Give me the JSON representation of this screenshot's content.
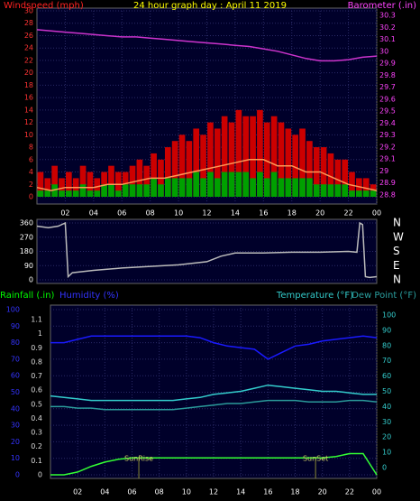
{
  "chart_data": [
    {
      "type": "bar",
      "title": "24 hour graph day : April 11 2019",
      "ylabel": "Windspeed (mph)",
      "y2label": "Barometer (.in)",
      "xlim": [
        0,
        24
      ],
      "xticks": [
        {
          "value": 2,
          "label": "02"
        },
        {
          "value": 4,
          "label": "04"
        },
        {
          "value": 6,
          "label": "06"
        },
        {
          "value": 8,
          "label": "08"
        },
        10,
        12,
        14,
        16,
        18,
        20,
        22,
        {
          "value": 24,
          "label": "00"
        }
      ],
      "ylim": [
        0,
        30
      ],
      "yticks": [
        0,
        2,
        4,
        6,
        8,
        10,
        12,
        14,
        16,
        18,
        20,
        22,
        24,
        26,
        28,
        30
      ],
      "y2lim": [
        28.8,
        30.3
      ],
      "y2ticks": [
        28.8,
        28.9,
        29,
        29.1,
        29.2,
        29.3,
        29.4,
        29.5,
        29.6,
        29.7,
        29.8,
        29.9,
        30,
        30.1,
        30.2,
        30.3
      ],
      "tick_colors": {
        "y": "#ff3333",
        "y2": "#ff44ff"
      },
      "grid": true,
      "series": [
        {
          "type": "bar",
          "color": "#cc0000",
          "x": [
            0.25,
            0.75,
            1.25,
            1.75,
            2.25,
            2.75,
            3.25,
            3.75,
            4.25,
            4.75,
            5.25,
            5.75,
            6.25,
            6.75,
            7.25,
            7.75,
            8.25,
            8.75,
            9.25,
            9.75,
            10.25,
            10.75,
            11.25,
            11.75,
            12.25,
            12.75,
            13.25,
            13.75,
            14.25,
            14.75,
            15.25,
            15.75,
            16.25,
            16.75,
            17.25,
            17.75,
            18.25,
            18.75,
            19.25,
            19.75,
            20.25,
            20.75,
            21.25,
            21.75,
            22.25,
            22.75,
            23.25,
            23.75
          ],
          "values": [
            4,
            3,
            5,
            3,
            4,
            3,
            5,
            4,
            3,
            4,
            5,
            4,
            4,
            5,
            6,
            5,
            7,
            6,
            8,
            9,
            10,
            9,
            11,
            10,
            12,
            11,
            13,
            12,
            14,
            13,
            13,
            14,
            12,
            13,
            12,
            11,
            10,
            11,
            9,
            8,
            8,
            7,
            6,
            6,
            4,
            3,
            3,
            2
          ]
        },
        {
          "type": "bar",
          "color": "#00a000",
          "x": [
            0.25,
            0.75,
            1.25,
            1.75,
            2.25,
            2.75,
            3.25,
            3.75,
            4.25,
            4.75,
            5.25,
            5.75,
            6.25,
            6.75,
            7.25,
            7.75,
            8.25,
            8.75,
            9.25,
            9.75,
            10.25,
            10.75,
            11.25,
            11.75,
            12.25,
            12.75,
            13.25,
            13.75,
            14.25,
            14.75,
            15.25,
            15.75,
            16.25,
            16.75,
            17.25,
            17.75,
            18.25,
            18.75,
            19.25,
            19.75,
            20.25,
            20.75,
            21.25,
            21.75,
            22.25,
            22.75,
            23.25,
            23.75
          ],
          "values": [
            1,
            1,
            2,
            1,
            1,
            1,
            2,
            1,
            1,
            2,
            2,
            1,
            2,
            2,
            2,
            2,
            3,
            2,
            3,
            3,
            3,
            3,
            4,
            3,
            4,
            3,
            4,
            4,
            4,
            4,
            3,
            4,
            3,
            4,
            3,
            3,
            3,
            3,
            3,
            2,
            2,
            2,
            2,
            2,
            1,
            1,
            1,
            1
          ]
        },
        {
          "type": "line",
          "color": "#ff9955",
          "x": [
            0,
            1,
            2,
            3,
            4,
            5,
            6,
            7,
            8,
            9,
            10,
            11,
            12,
            13,
            14,
            15,
            16,
            17,
            18,
            19,
            20,
            21,
            22,
            23,
            24
          ],
          "values": [
            1.5,
            1,
            1.5,
            1.5,
            1.5,
            2,
            2,
            2.5,
            3,
            3,
            3.5,
            4,
            4.5,
            5,
            5.5,
            6,
            6,
            5,
            5,
            4,
            4,
            3,
            2,
            1.5,
            1
          ]
        },
        {
          "type": "line",
          "color": "#cc33cc",
          "axis": "y2",
          "x": [
            0,
            1,
            2,
            3,
            4,
            5,
            6,
            7,
            8,
            9,
            10,
            11,
            12,
            13,
            14,
            15,
            16,
            17,
            18,
            19,
            20,
            21,
            22,
            23,
            24
          ],
          "values": [
            30.18,
            30.17,
            30.16,
            30.15,
            30.14,
            30.13,
            30.12,
            30.12,
            30.11,
            30.1,
            30.09,
            30.08,
            30.07,
            30.06,
            30.05,
            30.04,
            30.02,
            30,
            29.97,
            29.94,
            29.92,
            29.92,
            29.93,
            29.95,
            29.96
          ]
        }
      ]
    },
    {
      "type": "line",
      "xlim": [
        0,
        24
      ],
      "ylim": [
        0,
        360
      ],
      "yticks": [
        0,
        90,
        180,
        270,
        360
      ],
      "y2lim": [
        0,
        360
      ],
      "y2ticks": [
        {
          "value": 0,
          "label": "N"
        },
        {
          "value": 90,
          "label": "E"
        },
        {
          "value": 180,
          "label": "S"
        },
        {
          "value": 270,
          "label": "W"
        },
        {
          "value": 360,
          "label": "N"
        }
      ],
      "tick_colors": {
        "y": "#ffffff",
        "y2": "#ffffff"
      },
      "grid": true,
      "series": [
        {
          "type": "line",
          "color": "#bbbbbb",
          "x": [
            0,
            0.8,
            1.5,
            2,
            2.2,
            2.5,
            4,
            6,
            8,
            10,
            12,
            13,
            14,
            16,
            18,
            20,
            22,
            22.6,
            22.8,
            23,
            23.2,
            23.5,
            24
          ],
          "values": [
            340,
            330,
            340,
            360,
            20,
            45,
            60,
            75,
            85,
            95,
            115,
            150,
            170,
            170,
            175,
            175,
            180,
            175,
            360,
            350,
            20,
            15,
            20
          ]
        }
      ]
    },
    {
      "type": "line",
      "xlim": [
        0,
        24
      ],
      "xticks": [
        {
          "value": 2,
          "label": "02"
        },
        {
          "value": 4,
          "label": "04"
        },
        {
          "value": 6,
          "label": "06"
        },
        {
          "value": 8,
          "label": "08"
        },
        10,
        12,
        14,
        16,
        18,
        20,
        22,
        {
          "value": 24,
          "label": "00"
        }
      ],
      "ylim": [
        0,
        100
      ],
      "yticks": [
        0,
        10,
        20,
        30,
        40,
        50,
        60,
        70,
        80,
        90,
        100
      ],
      "y2lim": [
        0,
        100
      ],
      "y2ticks": [
        0,
        10,
        20,
        30,
        40,
        50,
        60,
        70,
        80,
        90,
        100
      ],
      "y3lim": [
        0,
        1.1
      ],
      "y3ticks": [
        0,
        0.1,
        0.2,
        0.3,
        0.4,
        0.5,
        0.6,
        0.7,
        0.8,
        0.9,
        1,
        1.1
      ],
      "tick_colors": {
        "y": "#3333ff",
        "y2": "#33cccc",
        "y3": "#dddddd"
      },
      "grid": true,
      "annotations": [
        {
          "text": "SunRise",
          "x": 6.5
        },
        {
          "text": "SunSet",
          "x": 19.5
        }
      ],
      "series": [
        {
          "name": "Humidity (%)",
          "type": "line",
          "color": "#1a1aff",
          "x": [
            0,
            1,
            2,
            3,
            4,
            5,
            6,
            7,
            8,
            9,
            10,
            11,
            12,
            13,
            14,
            15,
            16,
            17,
            18,
            19,
            20,
            21,
            22,
            23,
            24
          ],
          "values": [
            80,
            80,
            82,
            84,
            84,
            84,
            84,
            84,
            84,
            84,
            84,
            83,
            80,
            78,
            77,
            76,
            70,
            74,
            78,
            79,
            81,
            82,
            83,
            84,
            83
          ]
        },
        {
          "name": "Temperature (°F)",
          "type": "line",
          "color": "#33cccc",
          "axis": "y2",
          "x": [
            0,
            1,
            2,
            3,
            4,
            5,
            6,
            7,
            8,
            9,
            10,
            11,
            12,
            13,
            14,
            15,
            16,
            17,
            18,
            19,
            20,
            21,
            22,
            23,
            24
          ],
          "values": [
            47,
            46,
            45,
            44,
            44,
            44,
            44,
            44,
            44,
            44,
            45,
            46,
            48,
            49,
            50,
            52,
            54,
            53,
            52,
            51,
            50,
            50,
            49,
            48,
            48
          ]
        },
        {
          "name": "Dew Point (°F)",
          "type": "line",
          "color": "#2a9a9a",
          "axis": "y2",
          "x": [
            0,
            1,
            2,
            3,
            4,
            5,
            6,
            7,
            8,
            9,
            10,
            11,
            12,
            13,
            14,
            15,
            16,
            17,
            18,
            19,
            20,
            21,
            22,
            23,
            24
          ],
          "values": [
            40,
            40,
            39,
            39,
            38,
            38,
            38,
            38,
            38,
            38,
            39,
            40,
            41,
            42,
            42,
            43,
            44,
            44,
            44,
            43,
            43,
            43,
            44,
            44,
            43
          ]
        },
        {
          "name": "Rainfall (.in)",
          "type": "line",
          "color": "#33ff33",
          "axis": "y3",
          "x": [
            0,
            1,
            2,
            3,
            4,
            5,
            6,
            7,
            8,
            9,
            10,
            11,
            12,
            13,
            14,
            15,
            16,
            17,
            18,
            19,
            20,
            21,
            22,
            23,
            24
          ],
          "values": [
            0,
            0,
            0.02,
            0.06,
            0.09,
            0.11,
            0.12,
            0.12,
            0.12,
            0.12,
            0.12,
            0.12,
            0.12,
            0.12,
            0.12,
            0.12,
            0.12,
            0.12,
            0.12,
            0.12,
            0.12,
            0.13,
            0.15,
            0.15,
            0
          ]
        }
      ]
    }
  ]
}
